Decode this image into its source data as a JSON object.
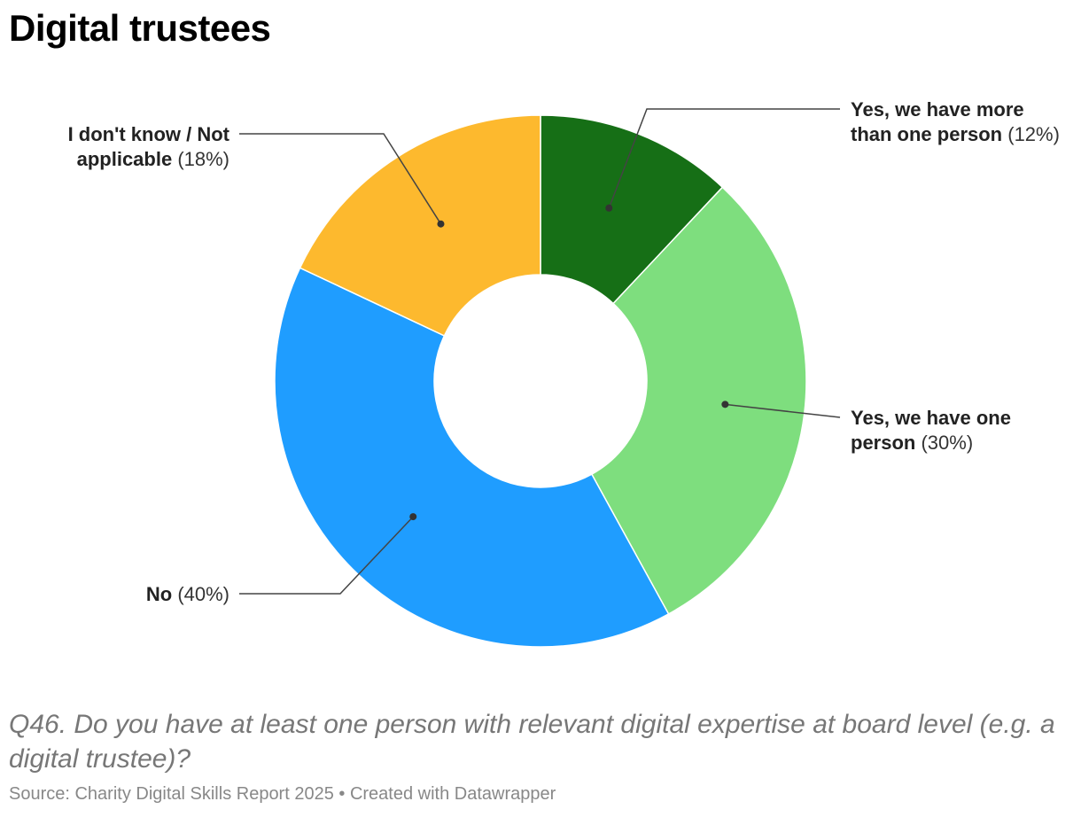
{
  "title": "Digital trustees",
  "notes": "Q46. Do you have at least one person with relevant digital expertise at board level (e.g. a digital trustee)?",
  "footer": "Source: Charity Digital Skills Report 2025 • Created with Datawrapper",
  "chart_data": {
    "type": "pie",
    "donut": true,
    "unit": "%",
    "slices": [
      {
        "name_line1": "Yes, we have more",
        "name_line2": "than one person",
        "value": 12,
        "value_label": "(12%)",
        "color": "#166f16"
      },
      {
        "name_line1": "Yes, we have one",
        "name_line2": "person",
        "value": 30,
        "value_label": "(30%)",
        "color": "#7ede7e"
      },
      {
        "name_line1": "No",
        "name_line2": "",
        "value": 40,
        "value_label": "(40%)",
        "color": "#1f9dff"
      },
      {
        "name_line1": "I don't know / Not",
        "name_line2": "applicable",
        "value": 18,
        "value_label": "(18%)",
        "color": "#fdb92e"
      }
    ]
  }
}
